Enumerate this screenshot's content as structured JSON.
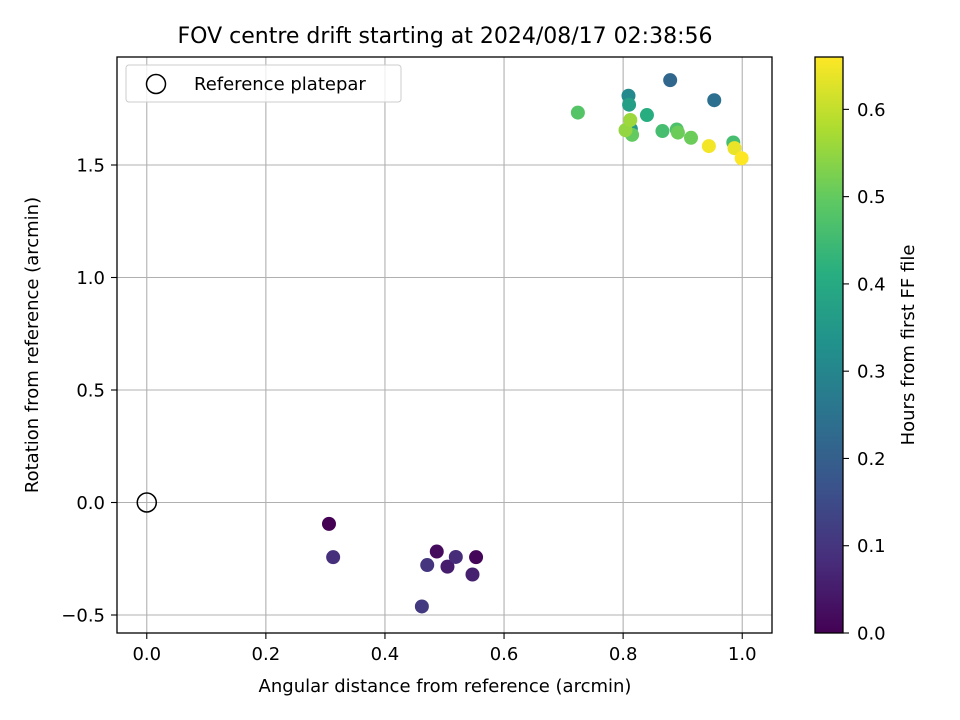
{
  "chart_data": {
    "type": "scatter",
    "title": "FOV centre drift starting at 2024/08/17 02:38:56",
    "xlabel": "Angular distance from reference (arcmin)",
    "ylabel": "Rotation from reference (arcmin)",
    "xlim": [
      -0.05,
      1.05
    ],
    "ylim": [
      -0.58,
      1.98
    ],
    "xticks": [
      0.0,
      0.2,
      0.4,
      0.6,
      0.8,
      1.0
    ],
    "xtick_labels": [
      "0.0",
      "0.2",
      "0.4",
      "0.6",
      "0.8",
      "1.0"
    ],
    "yticks": [
      -0.5,
      0.0,
      0.5,
      1.0,
      1.5
    ],
    "ytick_labels": [
      "−0.5",
      "0.0",
      "0.5",
      "1.0",
      "1.5"
    ],
    "grid": true,
    "legend": {
      "position": "top-left",
      "entries": [
        "Reference platepar"
      ]
    },
    "reference_point": {
      "x": 0.0,
      "y": 0.0
    },
    "colorbar": {
      "label": "Hours from first FF file",
      "range": [
        0.0,
        0.66
      ],
      "colormap": "viridis",
      "ticks": [
        0.0,
        0.1,
        0.2,
        0.3,
        0.4,
        0.5,
        0.6
      ],
      "tick_labels": [
        "0.0",
        "0.1",
        "0.2",
        "0.3",
        "0.4",
        "0.5",
        "0.6"
      ]
    },
    "points": [
      {
        "x": 0.306,
        "y": -0.095,
        "hours": 0.0
      },
      {
        "x": 0.553,
        "y": -0.243,
        "hours": 0.01
      },
      {
        "x": 0.487,
        "y": -0.218,
        "hours": 0.02
      },
      {
        "x": 0.505,
        "y": -0.285,
        "hours": 0.05
      },
      {
        "x": 0.547,
        "y": -0.32,
        "hours": 0.06
      },
      {
        "x": 0.519,
        "y": -0.242,
        "hours": 0.08
      },
      {
        "x": 0.313,
        "y": -0.243,
        "hours": 0.09
      },
      {
        "x": 0.471,
        "y": -0.278,
        "hours": 0.1
      },
      {
        "x": 0.462,
        "y": -0.462,
        "hours": 0.11
      },
      {
        "x": 0.879,
        "y": 1.877,
        "hours": 0.22
      },
      {
        "x": 0.953,
        "y": 1.788,
        "hours": 0.24
      },
      {
        "x": 0.809,
        "y": 1.808,
        "hours": 0.31
      },
      {
        "x": 0.813,
        "y": 1.66,
        "hours": 0.35
      },
      {
        "x": 0.81,
        "y": 1.768,
        "hours": 0.37
      },
      {
        "x": 0.84,
        "y": 1.722,
        "hours": 0.41
      },
      {
        "x": 0.985,
        "y": 1.6,
        "hours": 0.46
      },
      {
        "x": 0.866,
        "y": 1.651,
        "hours": 0.46
      },
      {
        "x": 0.89,
        "y": 1.658,
        "hours": 0.47
      },
      {
        "x": 0.724,
        "y": 1.733,
        "hours": 0.48
      },
      {
        "x": 0.815,
        "y": 1.634,
        "hours": 0.5
      },
      {
        "x": 0.892,
        "y": 1.644,
        "hours": 0.51
      },
      {
        "x": 0.914,
        "y": 1.621,
        "hours": 0.51
      },
      {
        "x": 0.804,
        "y": 1.655,
        "hours": 0.55
      },
      {
        "x": 0.812,
        "y": 1.7,
        "hours": 0.56
      },
      {
        "x": 0.987,
        "y": 1.575,
        "hours": 0.64
      },
      {
        "x": 0.944,
        "y": 1.584,
        "hours": 0.65
      },
      {
        "x": 0.999,
        "y": 1.53,
        "hours": 0.66
      }
    ]
  }
}
